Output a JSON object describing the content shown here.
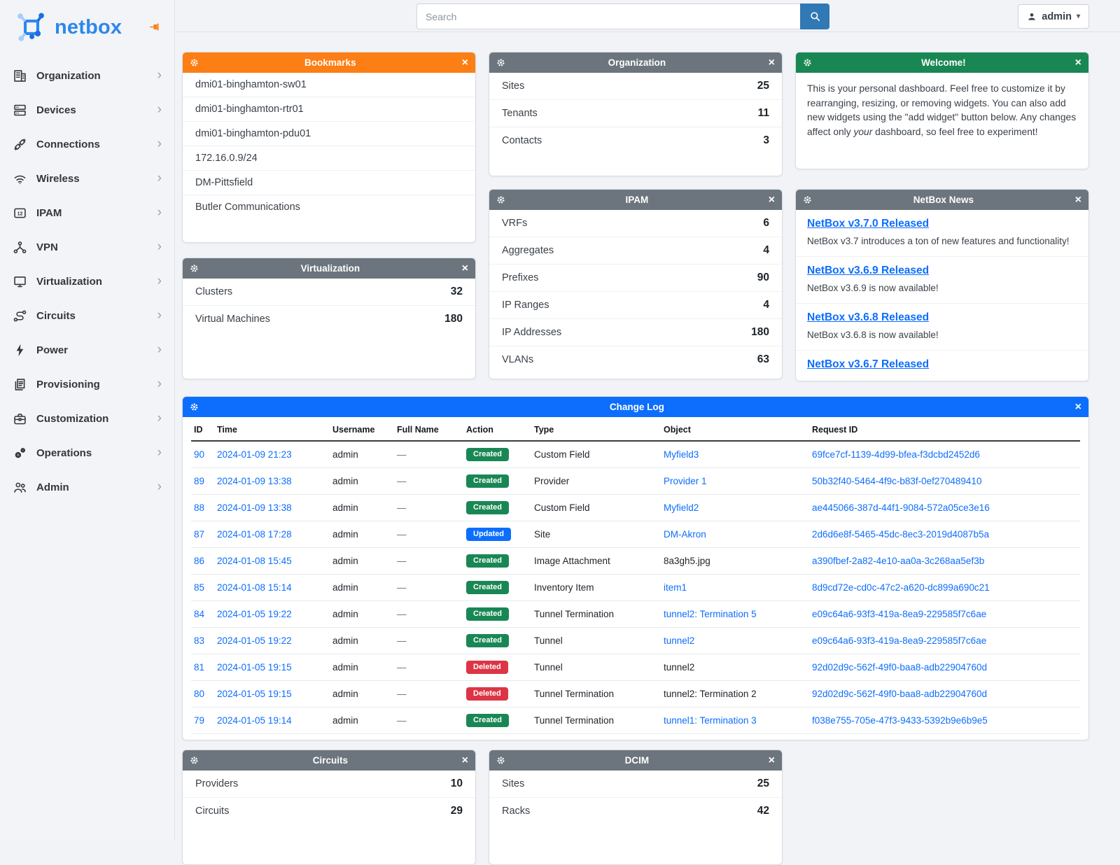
{
  "brand": {
    "name": "netbox"
  },
  "topbar": {
    "search_placeholder": "Search",
    "user": "admin"
  },
  "sidebar": {
    "items": [
      {
        "label": "Organization",
        "icon": "organization"
      },
      {
        "label": "Devices",
        "icon": "devices"
      },
      {
        "label": "Connections",
        "icon": "connections"
      },
      {
        "label": "Wireless",
        "icon": "wireless"
      },
      {
        "label": "IPAM",
        "icon": "ipam"
      },
      {
        "label": "VPN",
        "icon": "vpn"
      },
      {
        "label": "Virtualization",
        "icon": "virtualization"
      },
      {
        "label": "Circuits",
        "icon": "circuits"
      },
      {
        "label": "Power",
        "icon": "power"
      },
      {
        "label": "Provisioning",
        "icon": "provisioning"
      },
      {
        "label": "Customization",
        "icon": "customization"
      },
      {
        "label": "Operations",
        "icon": "operations"
      },
      {
        "label": "Admin",
        "icon": "admin"
      }
    ]
  },
  "badge_colors": {
    "Created": "#198754",
    "Updated": "#0d6efd",
    "Deleted": "#dc3545"
  },
  "widgets": {
    "bookmarks": {
      "title": "Bookmarks",
      "color": "#fd7e14",
      "items": [
        "dmi01-binghamton-sw01",
        "dmi01-binghamton-rtr01",
        "dmi01-binghamton-pdu01",
        "172.16.0.9/24",
        "DM-Pittsfield",
        "Butler Communications"
      ]
    },
    "organization": {
      "title": "Organization",
      "color": "#6c757d",
      "stats": [
        {
          "label": "Sites",
          "value": "25"
        },
        {
          "label": "Tenants",
          "value": "11"
        },
        {
          "label": "Contacts",
          "value": "3"
        }
      ]
    },
    "welcome": {
      "title": "Welcome!",
      "color": "#198754",
      "text": {
        "before": "This is your personal dashboard. Feel free to customize it by rearranging, resizing, or removing widgets. You can also add new widgets using the \"add widget\" button below. Any changes affect only ",
        "italic_word": "your",
        "after": " dashboard, so feel free to experiment!"
      }
    },
    "virtualization": {
      "title": "Virtualization",
      "color": "#6c757d",
      "stats": [
        {
          "label": "Clusters",
          "value": "32"
        },
        {
          "label": "Virtual Machines",
          "value": "180"
        }
      ]
    },
    "ipam": {
      "title": "IPAM",
      "color": "#6c757d",
      "stats": [
        {
          "label": "VRFs",
          "value": "6"
        },
        {
          "label": "Aggregates",
          "value": "4"
        },
        {
          "label": "Prefixes",
          "value": "90"
        },
        {
          "label": "IP Ranges",
          "value": "4"
        },
        {
          "label": "IP Addresses",
          "value": "180"
        },
        {
          "label": "VLANs",
          "value": "63"
        }
      ]
    },
    "news": {
      "title": "NetBox News",
      "color": "#6c757d",
      "items": [
        {
          "title": "NetBox v3.7.0 Released",
          "desc": "NetBox v3.7 introduces a ton of new features and functionality!"
        },
        {
          "title": "NetBox v3.6.9 Released",
          "desc": "NetBox v3.6.9 is now available!"
        },
        {
          "title": "NetBox v3.6.8 Released",
          "desc": "NetBox v3.6.8 is now available!"
        },
        {
          "title": "NetBox v3.6.7 Released",
          "desc": ""
        }
      ]
    },
    "changelog": {
      "title": "Change Log",
      "color": "#0d6efd",
      "columns": [
        "ID",
        "Time",
        "Username",
        "Full Name",
        "Action",
        "Type",
        "Object",
        "Request ID"
      ],
      "rows": [
        {
          "id": "90",
          "time": "2024-01-09 21:23",
          "username": "admin",
          "full_name": "—",
          "action": "Created",
          "type": "Custom Field",
          "object": "Myfield3",
          "object_is_link": true,
          "request_id": "69fce7cf-1139-4d99-bfea-f3dcbd2452d6"
        },
        {
          "id": "89",
          "time": "2024-01-09 13:38",
          "username": "admin",
          "full_name": "—",
          "action": "Created",
          "type": "Provider",
          "object": "Provider 1",
          "object_is_link": true,
          "request_id": "50b32f40-5464-4f9c-b83f-0ef270489410"
        },
        {
          "id": "88",
          "time": "2024-01-09 13:38",
          "username": "admin",
          "full_name": "—",
          "action": "Created",
          "type": "Custom Field",
          "object": "Myfield2",
          "object_is_link": true,
          "request_id": "ae445066-387d-44f1-9084-572a05ce3e16"
        },
        {
          "id": "87",
          "time": "2024-01-08 17:28",
          "username": "admin",
          "full_name": "—",
          "action": "Updated",
          "type": "Site",
          "object": "DM-Akron",
          "object_is_link": true,
          "request_id": "2d6d6e8f-5465-45dc-8ec3-2019d4087b5a"
        },
        {
          "id": "86",
          "time": "2024-01-08 15:45",
          "username": "admin",
          "full_name": "—",
          "action": "Created",
          "type": "Image Attachment",
          "object": "8a3gh5.jpg",
          "object_is_link": false,
          "request_id": "a390fbef-2a82-4e10-aa0a-3c268aa5ef3b"
        },
        {
          "id": "85",
          "time": "2024-01-08 15:14",
          "username": "admin",
          "full_name": "—",
          "action": "Created",
          "type": "Inventory Item",
          "object": "item1",
          "object_is_link": true,
          "request_id": "8d9cd72e-cd0c-47c2-a620-dc899a690c21"
        },
        {
          "id": "84",
          "time": "2024-01-05 19:22",
          "username": "admin",
          "full_name": "—",
          "action": "Created",
          "type": "Tunnel Termination",
          "object": "tunnel2: Termination 5",
          "object_is_link": true,
          "request_id": "e09c64a6-93f3-419a-8ea9-229585f7c6ae"
        },
        {
          "id": "83",
          "time": "2024-01-05 19:22",
          "username": "admin",
          "full_name": "—",
          "action": "Created",
          "type": "Tunnel",
          "object": "tunnel2",
          "object_is_link": true,
          "request_id": "e09c64a6-93f3-419a-8ea9-229585f7c6ae"
        },
        {
          "id": "81",
          "time": "2024-01-05 19:15",
          "username": "admin",
          "full_name": "—",
          "action": "Deleted",
          "type": "Tunnel",
          "object": "tunnel2",
          "object_is_link": false,
          "request_id": "92d02d9c-562f-49f0-baa8-adb22904760d"
        },
        {
          "id": "80",
          "time": "2024-01-05 19:15",
          "username": "admin",
          "full_name": "—",
          "action": "Deleted",
          "type": "Tunnel Termination",
          "object": "tunnel2: Termination 2",
          "object_is_link": false,
          "request_id": "92d02d9c-562f-49f0-baa8-adb22904760d"
        },
        {
          "id": "79",
          "time": "2024-01-05 19:14",
          "username": "admin",
          "full_name": "—",
          "action": "Created",
          "type": "Tunnel Termination",
          "object": "tunnel1: Termination 3",
          "object_is_link": true,
          "request_id": "f038e755-705e-47f3-9433-5392b9e6b9e5"
        }
      ]
    },
    "circuits": {
      "title": "Circuits",
      "color": "#6c757d",
      "stats": [
        {
          "label": "Providers",
          "value": "10"
        },
        {
          "label": "Circuits",
          "value": "29"
        }
      ]
    },
    "dcim": {
      "title": "DCIM",
      "color": "#6c757d",
      "stats": [
        {
          "label": "Sites",
          "value": "25"
        },
        {
          "label": "Racks",
          "value": "42"
        }
      ]
    }
  }
}
